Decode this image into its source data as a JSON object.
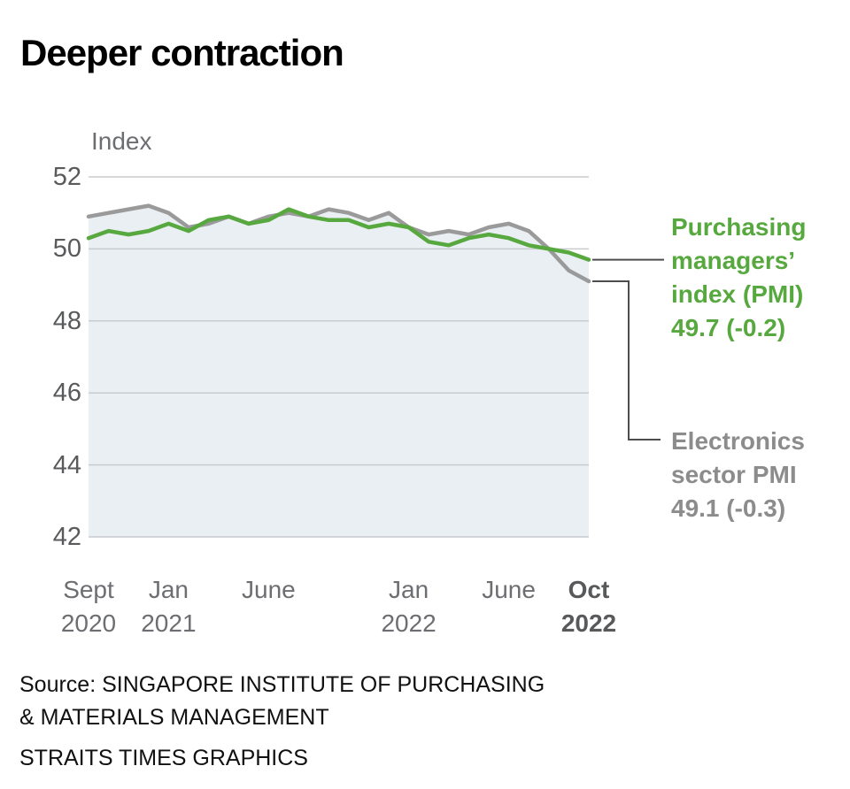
{
  "title": "Deeper contraction",
  "axis": {
    "y_label": "Index",
    "y_ticks": [
      52,
      50,
      48,
      46,
      44,
      42
    ],
    "x_ticks": [
      {
        "label": "Sept\n2020",
        "month_index": 0,
        "bold": false
      },
      {
        "label": "Jan\n2021",
        "month_index": 4,
        "bold": false
      },
      {
        "label": "June",
        "month_index": 9,
        "bold": false
      },
      {
        "label": "Jan\n2022",
        "month_index": 16,
        "bold": false
      },
      {
        "label": "June",
        "month_index": 21,
        "bold": false
      },
      {
        "label": "Oct\n2022",
        "month_index": 25,
        "bold": true
      }
    ]
  },
  "chart_data": {
    "type": "line",
    "title": "Deeper contraction",
    "xlabel": "",
    "ylabel": "Index",
    "ylim": [
      42,
      52
    ],
    "grid": "horizontal",
    "area_fill": "#e9eff3",
    "gridline_color": "#c8cccf",
    "x": [
      "Sep 2020",
      "Oct 2020",
      "Nov 2020",
      "Dec 2020",
      "Jan 2021",
      "Feb 2021",
      "Mar 2021",
      "Apr 2021",
      "May 2021",
      "Jun 2021",
      "Jul 2021",
      "Aug 2021",
      "Sep 2021",
      "Oct 2021",
      "Nov 2021",
      "Dec 2021",
      "Jan 2022",
      "Feb 2022",
      "Mar 2022",
      "Apr 2022",
      "May 2022",
      "Jun 2022",
      "Jul 2022",
      "Aug 2022",
      "Sep 2022",
      "Oct 2022"
    ],
    "series": [
      {
        "name": "Purchasing managers' index (PMI)",
        "color": "#57a83e",
        "values": [
          50.3,
          50.5,
          50.4,
          50.5,
          50.7,
          50.5,
          50.8,
          50.9,
          50.7,
          50.8,
          51.1,
          50.9,
          50.8,
          50.8,
          50.6,
          50.7,
          50.6,
          50.2,
          50.1,
          50.3,
          50.4,
          50.3,
          50.1,
          50.0,
          49.9,
          49.7
        ]
      },
      {
        "name": "Electronics sector PMI",
        "color": "#9a9a9a",
        "values": [
          50.9,
          51.0,
          51.1,
          51.2,
          51.0,
          50.6,
          50.7,
          50.9,
          50.7,
          50.9,
          51.0,
          50.9,
          51.1,
          51.0,
          50.8,
          51.0,
          50.6,
          50.4,
          50.5,
          50.4,
          50.6,
          50.7,
          50.5,
          50.0,
          49.4,
          49.1
        ]
      }
    ]
  },
  "annotations": {
    "pmi": {
      "label": "Purchasing managers’ index (PMI)",
      "value": "49.7 (-0.2)"
    },
    "electronics": {
      "label": "Electronics sector PMI",
      "value": "49.1 (-0.3)"
    }
  },
  "source": {
    "line1": "Source: SINGAPORE INSTITUTE OF PURCHASING",
    "line2": "& MATERIALS MANAGEMENT",
    "credit": "STRAITS TIMES GRAPHICS"
  }
}
